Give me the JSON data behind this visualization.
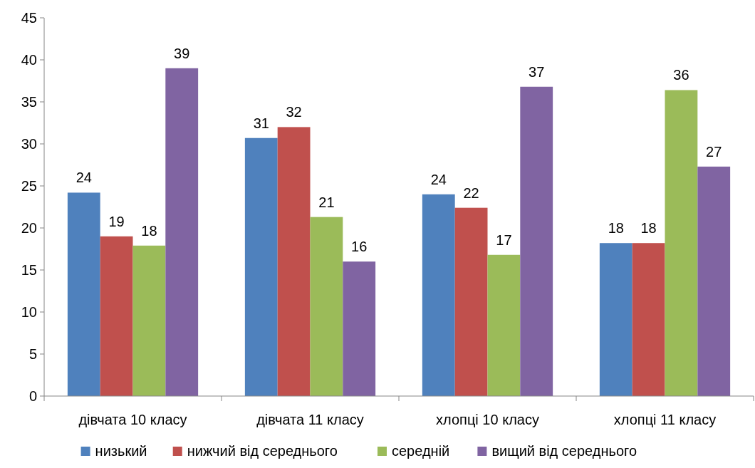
{
  "chart_data": {
    "type": "bar",
    "categories": [
      "дівчата 10 класу",
      "дівчата 11 класу",
      "хлопці 10 класу",
      "хлопці 11 класу"
    ],
    "series": [
      {
        "name": "низький",
        "color": "#4f81bd",
        "values": [
          24.2,
          30.7,
          24,
          18.2
        ],
        "value_labels": [
          "24",
          "31",
          "24",
          "18"
        ]
      },
      {
        "name": "нижчий від середнього",
        "color": "#c0504d",
        "values": [
          19,
          32,
          22.4,
          18.2
        ],
        "value_labels": [
          "19",
          "32",
          "22",
          "18"
        ]
      },
      {
        "name": "середній",
        "color": "#9bbb59",
        "values": [
          17.9,
          21.3,
          16.8,
          36.4
        ],
        "value_labels": [
          "18",
          "21",
          "17",
          "36"
        ]
      },
      {
        "name": "вищий від середнього",
        "color": "#8064a2",
        "values": [
          39,
          16,
          36.8,
          27.3
        ],
        "value_labels": [
          "39",
          "16",
          "37",
          "27"
        ]
      }
    ],
    "ylim": [
      0,
      45
    ],
    "yticks": [
      0,
      5,
      10,
      15,
      20,
      25,
      30,
      35,
      40,
      45
    ],
    "grid": false,
    "legend": "bottom"
  }
}
